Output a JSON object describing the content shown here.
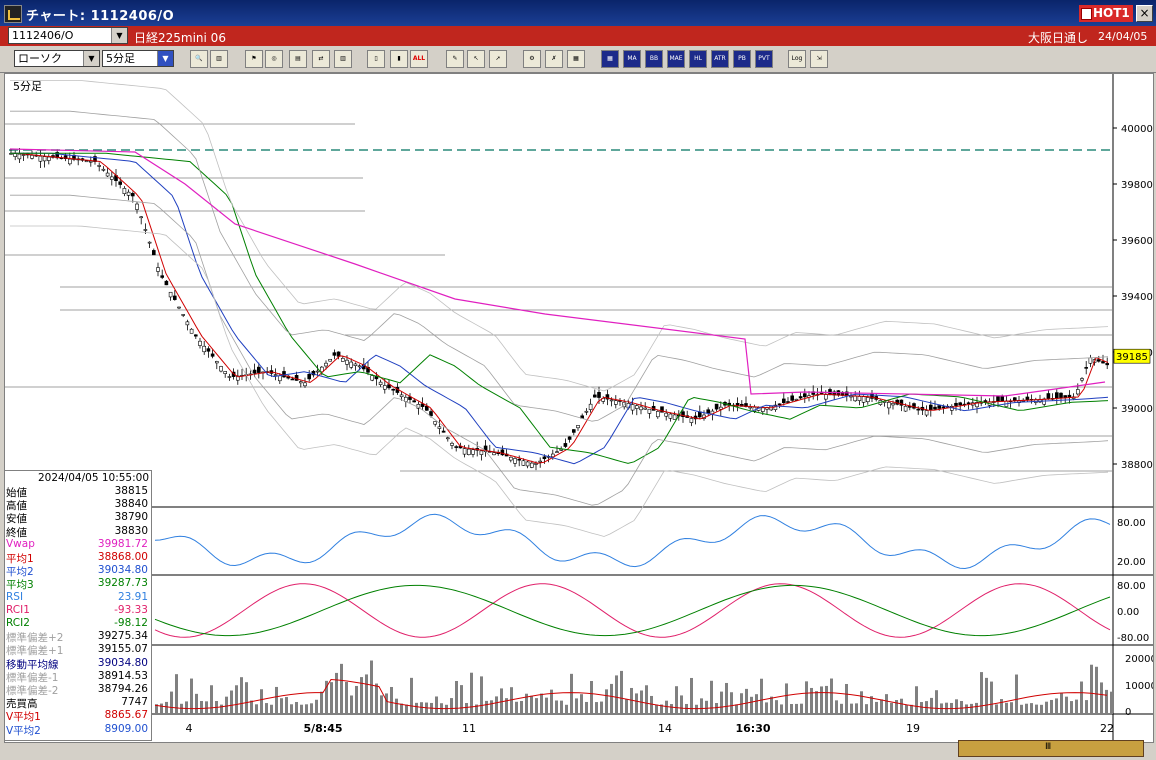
{
  "window": {
    "title": "チャート: 1112406/O",
    "hot_label": "HOT1",
    "close_glyph": "×"
  },
  "header": {
    "symbol_code": "1112406/O",
    "symbol_name": "日経225mini 06",
    "session": "大阪日通し",
    "date": "24/04/05"
  },
  "toolbar": {
    "chart_type": "ローソク",
    "timeframe": "5分足",
    "buttons": [
      {
        "name": "zoom-icon",
        "label": "🔍"
      },
      {
        "name": "table-icon",
        "label": "▥"
      },
      {
        "name": "candle-tool-icon",
        "label": "⚑"
      },
      {
        "name": "search-chart-icon",
        "label": "◎"
      },
      {
        "name": "bar-chart-icon",
        "label": "▤"
      },
      {
        "name": "swap-icon",
        "label": "⇄"
      },
      {
        "name": "disabled-icon",
        "label": "▥"
      },
      {
        "name": "candle-left-icon",
        "label": "▯"
      },
      {
        "name": "candle-right-icon",
        "label": "▮"
      },
      {
        "name": "all-button",
        "label": "ALL"
      },
      {
        "name": "pen-icon",
        "label": "✎"
      },
      {
        "name": "cursor-icon",
        "label": "↖"
      },
      {
        "name": "arrow-icon",
        "label": "➚"
      },
      {
        "name": "gear-icon",
        "label": "⚙"
      },
      {
        "name": "wrench-icon",
        "label": "✗"
      },
      {
        "name": "color-icon",
        "label": "▦"
      },
      {
        "name": "price-table-icon",
        "label": "▦"
      },
      {
        "name": "ma-button",
        "label": "MA"
      },
      {
        "name": "bb-button",
        "label": "BB"
      },
      {
        "name": "mae-button",
        "label": "MAE"
      },
      {
        "name": "hl-button",
        "label": "HL"
      },
      {
        "name": "atr-button",
        "label": "ATR"
      },
      {
        "name": "pb-button",
        "label": "PB"
      },
      {
        "name": "pvt-button",
        "label": "PVT"
      },
      {
        "name": "log-button",
        "label": "Log"
      },
      {
        "name": "export-icon",
        "label": "⇲"
      }
    ]
  },
  "chart": {
    "timeframe_label": "5分足",
    "price_ticks": [
      "40000",
      "39800",
      "39600",
      "39400",
      "39200",
      "39000",
      "38800"
    ],
    "current_price": "39185",
    "rsi_ticks": [
      "80.00",
      "20.00"
    ],
    "rci_ticks": [
      "80.00",
      "0.00",
      "-80.00"
    ],
    "volume_ticks": [
      "20000",
      "10000",
      "0"
    ],
    "x_labels": [
      "4",
      "5/8:45",
      "11",
      "14",
      "16:30",
      "19",
      "22"
    ]
  },
  "info": {
    "datetime": "2024/04/05  10:55:00",
    "rows": [
      {
        "label": "始値",
        "value": "38815",
        "color": "#000000"
      },
      {
        "label": "高値",
        "value": "38840",
        "color": "#000000"
      },
      {
        "label": "安値",
        "value": "38790",
        "color": "#000000"
      },
      {
        "label": "終値",
        "value": "38830",
        "color": "#000000"
      },
      {
        "label": "Vwap",
        "value": "39981.72",
        "color": "#e020c0"
      },
      {
        "label": "平均1",
        "value": "38868.00",
        "color": "#d00000"
      },
      {
        "label": "平均2",
        "value": "39034.80",
        "color": "#2050d0"
      },
      {
        "label": "平均3",
        "value": "39287.73",
        "color": "#008000"
      },
      {
        "label": "RSI",
        "value": "23.91",
        "color": "#3080e0"
      },
      {
        "label": "RCI1",
        "value": "-93.33",
        "color": "#e0206a"
      },
      {
        "label": "RCI2",
        "value": "-98.12",
        "color": "#008000"
      },
      {
        "label": "標準偏差+2",
        "value": "39275.34",
        "color": "#a0a0a0"
      },
      {
        "label": "標準偏差+1",
        "value": "39155.07",
        "color": "#a0a0a0"
      },
      {
        "label": "移動平均線",
        "value": "39034.80",
        "color": "#000080"
      },
      {
        "label": "標準偏差-1",
        "value": "38914.53",
        "color": "#a0a0a0"
      },
      {
        "label": "標準偏差-2",
        "value": "38794.26",
        "color": "#a0a0a0"
      },
      {
        "label": "売買高",
        "value": "7747",
        "color": "#000000"
      },
      {
        "label": "V平均1",
        "value": "8865.67",
        "color": "#d00000"
      },
      {
        "label": "V平均2",
        "value": "8909.00",
        "color": "#2050d0"
      }
    ]
  }
}
